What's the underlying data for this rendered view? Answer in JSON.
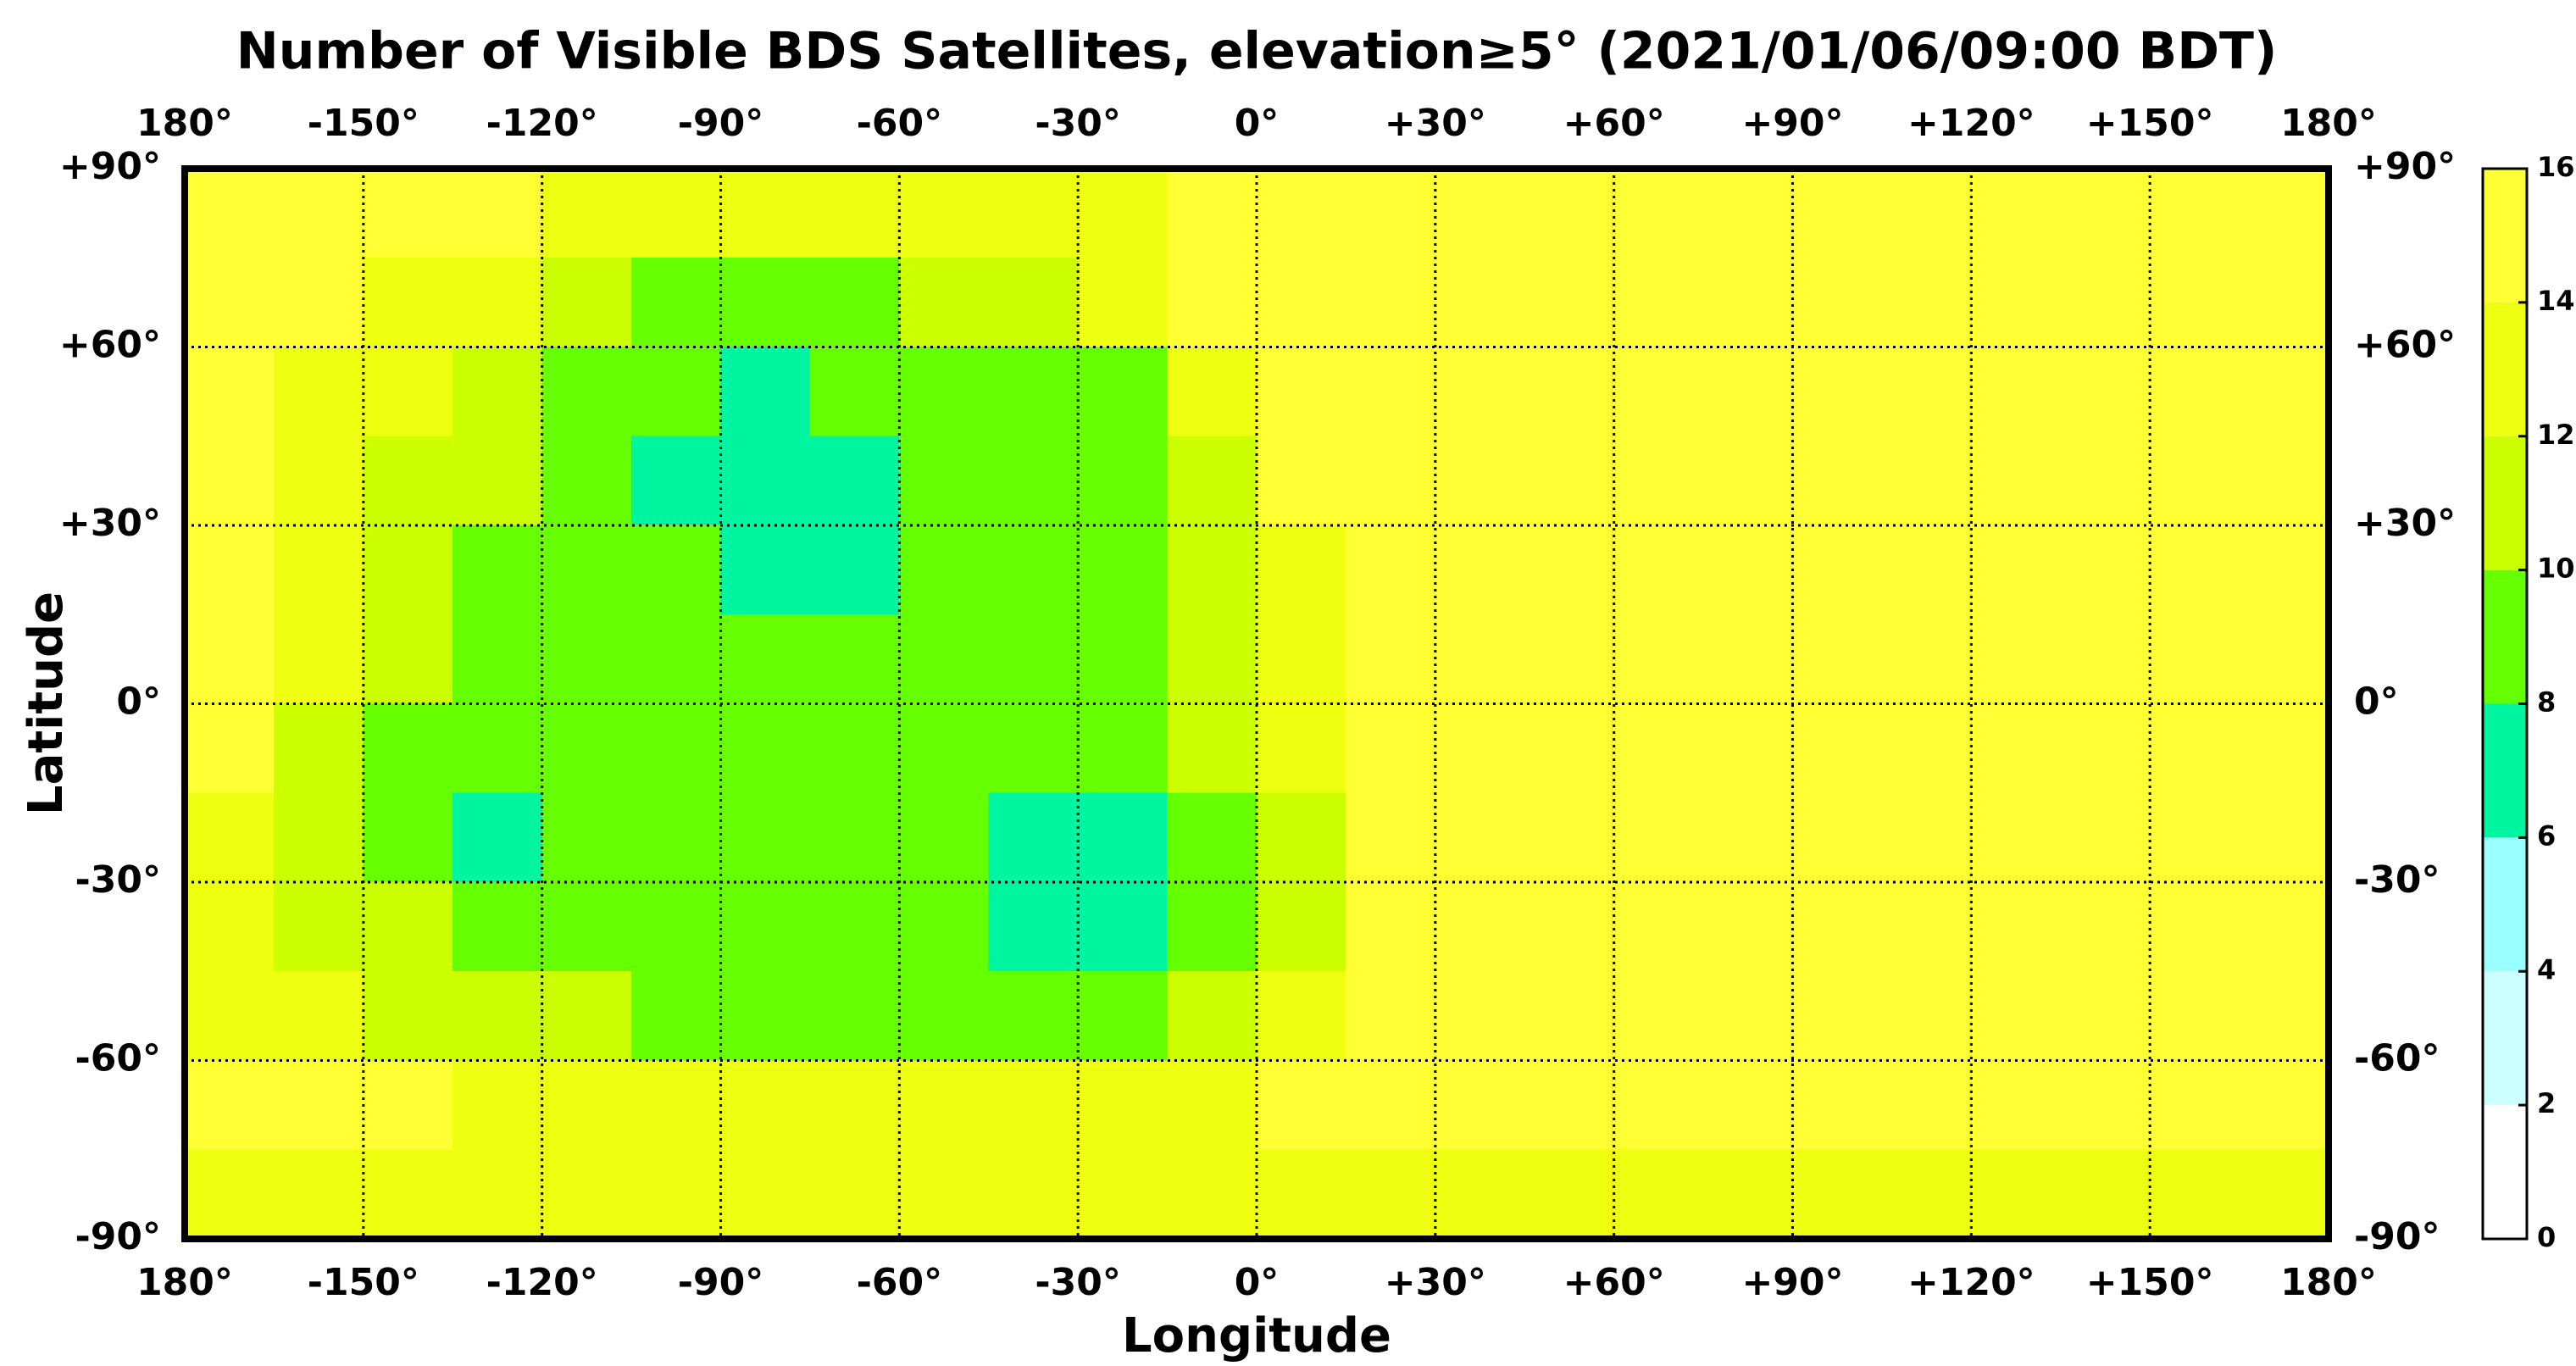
{
  "chart_data": {
    "type": "heatmap",
    "title": "Number of Visible BDS Satellites, elevation≥5° (2021/01/06/09:00 BDT)",
    "xlabel": "Longitude",
    "ylabel": "Latitude",
    "xlim": [
      -180,
      180
    ],
    "ylim": [
      -90,
      90
    ],
    "xticks": [
      {
        "value": -180,
        "label": "180°"
      },
      {
        "value": -150,
        "label": "-150°"
      },
      {
        "value": -120,
        "label": "-120°"
      },
      {
        "value": -90,
        "label": "-90°"
      },
      {
        "value": -60,
        "label": "-60°"
      },
      {
        "value": -30,
        "label": "-30°"
      },
      {
        "value": 0,
        "label": "0°"
      },
      {
        "value": 30,
        "label": "+30°"
      },
      {
        "value": 60,
        "label": "+60°"
      },
      {
        "value": 90,
        "label": "+90°"
      },
      {
        "value": 120,
        "label": "+120°"
      },
      {
        "value": 150,
        "label": "+150°"
      },
      {
        "value": 180,
        "label": "180°"
      }
    ],
    "yticks": [
      {
        "value": 90,
        "label": "+90°"
      },
      {
        "value": 60,
        "label": "+60°"
      },
      {
        "value": 30,
        "label": "+30°"
      },
      {
        "value": 0,
        "label": "0°"
      },
      {
        "value": -30,
        "label": "-30°"
      },
      {
        "value": -60,
        "label": "-60°"
      },
      {
        "value": -90,
        "label": "-90°"
      }
    ],
    "grid": true,
    "z": [
      [
        15,
        15,
        15,
        15,
        13,
        13,
        13,
        13,
        13,
        13,
        13,
        15,
        15,
        15,
        15,
        15,
        15,
        15,
        15,
        15,
        15,
        15,
        15,
        15
      ],
      [
        15,
        15,
        13,
        13,
        11,
        9,
        9,
        9,
        11,
        11,
        13,
        15,
        15,
        15,
        15,
        15,
        15,
        15,
        15,
        15,
        15,
        15,
        15,
        15
      ],
      [
        15,
        13,
        13,
        11,
        9,
        9,
        7,
        9,
        9,
        9,
        9,
        13,
        15,
        15,
        15,
        15,
        15,
        15,
        15,
        15,
        15,
        15,
        15,
        15
      ],
      [
        15,
        13,
        11,
        11,
        9,
        7,
        7,
        7,
        9,
        9,
        9,
        11,
        15,
        15,
        15,
        15,
        15,
        15,
        15,
        15,
        15,
        15,
        15,
        15
      ],
      [
        15,
        13,
        11,
        9,
        9,
        9,
        7,
        7,
        9,
        9,
        9,
        11,
        13,
        15,
        15,
        15,
        15,
        15,
        15,
        15,
        15,
        15,
        15,
        15
      ],
      [
        15,
        13,
        11,
        9,
        9,
        9,
        9,
        9,
        9,
        9,
        9,
        11,
        13,
        15,
        15,
        15,
        15,
        15,
        15,
        15,
        15,
        15,
        15,
        15
      ],
      [
        15,
        11,
        9,
        9,
        9,
        9,
        9,
        9,
        9,
        9,
        9,
        11,
        13,
        15,
        15,
        15,
        15,
        15,
        15,
        15,
        15,
        15,
        15,
        15
      ],
      [
        13,
        11,
        9,
        7,
        9,
        9,
        9,
        9,
        9,
        7,
        7,
        9,
        11,
        15,
        15,
        15,
        15,
        15,
        15,
        15,
        15,
        15,
        15,
        15
      ],
      [
        13,
        11,
        11,
        9,
        9,
        9,
        9,
        9,
        9,
        7,
        7,
        9,
        11,
        15,
        15,
        15,
        15,
        15,
        15,
        15,
        15,
        15,
        15,
        15
      ],
      [
        13,
        13,
        11,
        11,
        11,
        9,
        9,
        9,
        9,
        9,
        9,
        11,
        13,
        15,
        15,
        15,
        15,
        15,
        15,
        15,
        15,
        15,
        15,
        15
      ],
      [
        15,
        15,
        15,
        13,
        13,
        13,
        13,
        13,
        13,
        13,
        13,
        13,
        15,
        15,
        15,
        15,
        15,
        15,
        15,
        15,
        15,
        15,
        15,
        15
      ],
      [
        13,
        13,
        13,
        13,
        13,
        13,
        13,
        13,
        13,
        13,
        13,
        13,
        13,
        13,
        13,
        13,
        13,
        13,
        13,
        13,
        13,
        13,
        13,
        13
      ]
    ],
    "colorbar": {
      "ticks": [
        0,
        2,
        4,
        6,
        8,
        10,
        12,
        14,
        16
      ],
      "colors": [
        "#ffffff",
        "#ccffff",
        "#99ffff",
        "#00f5a0",
        "#66ff00",
        "#ccff00",
        "#eeff10",
        "#ffff33"
      ]
    }
  }
}
